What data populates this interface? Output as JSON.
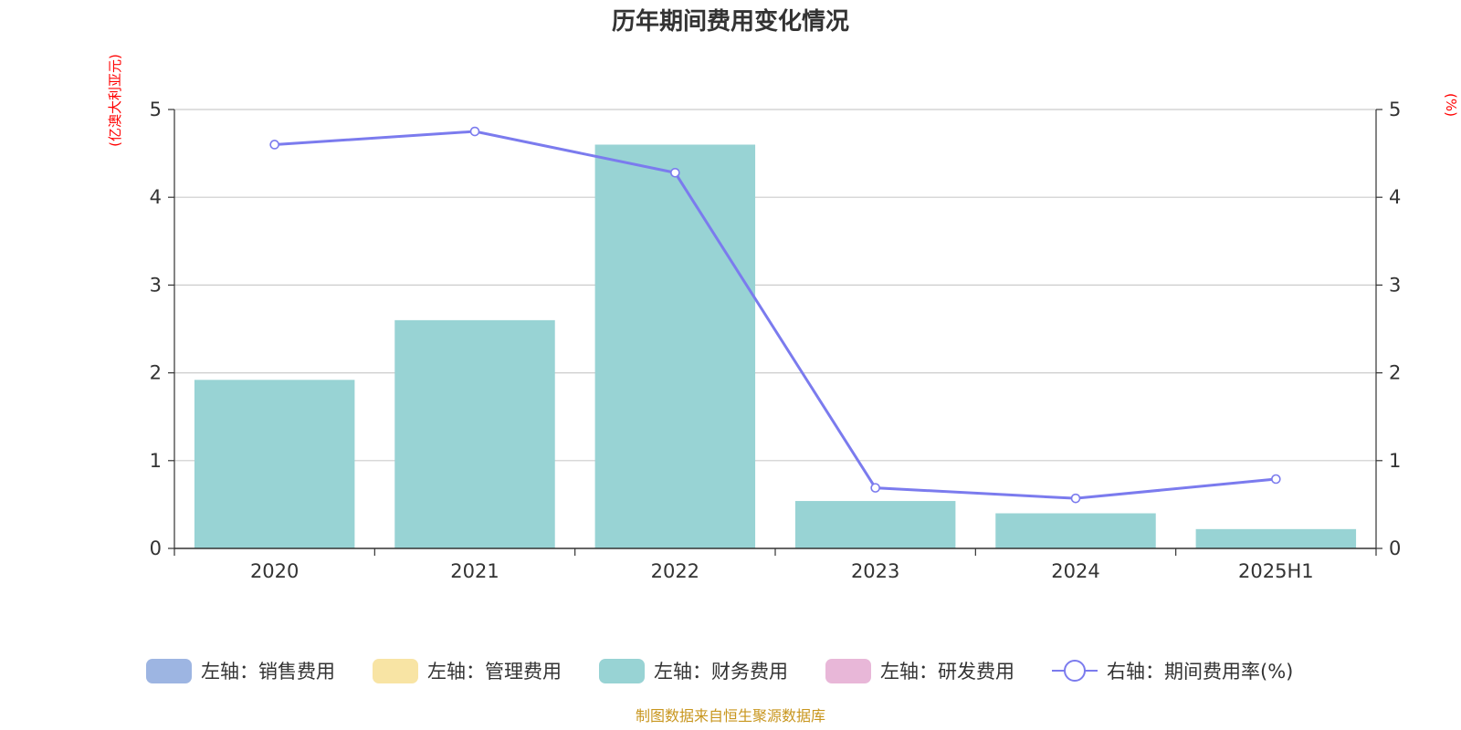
{
  "chart_data": {
    "type": "bar",
    "title": "历年期间费用变化情况",
    "categories": [
      "2020",
      "2021",
      "2022",
      "2023",
      "2024",
      "2025H1"
    ],
    "left_axis": {
      "unit_label": "(亿澳大利亚元)",
      "ylim": [
        0,
        5
      ],
      "ticks": [
        "0",
        "1",
        "2",
        "3",
        "4",
        "5"
      ]
    },
    "right_axis": {
      "unit_label": "(%)",
      "ylim": [
        0,
        5
      ],
      "ticks": [
        "0",
        "1",
        "2",
        "3",
        "4",
        "5"
      ]
    },
    "series": [
      {
        "name": "左轴：销售费用",
        "type": "bar",
        "axis": "left",
        "color": "#9DB5E2",
        "values": [
          null,
          null,
          null,
          null,
          null,
          null
        ]
      },
      {
        "name": "左轴：管理费用",
        "type": "bar",
        "axis": "left",
        "color": "#F8E4A4",
        "values": [
          null,
          null,
          null,
          null,
          null,
          null
        ]
      },
      {
        "name": "左轴：财务费用",
        "type": "bar",
        "axis": "left",
        "color": "#98D3D4",
        "values": [
          1.92,
          2.6,
          4.6,
          0.54,
          0.4,
          0.22
        ]
      },
      {
        "name": "左轴：研发费用",
        "type": "bar",
        "axis": "left",
        "color": "#E8B7D8",
        "values": [
          null,
          null,
          null,
          null,
          null,
          null
        ]
      },
      {
        "name": "右轴：期间费用率(%)",
        "type": "line",
        "axis": "right",
        "color": "#7B7BEE",
        "values": [
          4.6,
          4.75,
          4.28,
          0.69,
          0.57,
          0.79
        ]
      }
    ],
    "grid": true,
    "legend_position": "bottom",
    "source": "制图数据来自恒生聚源数据库",
    "colors": {
      "axis_unit": "#FF0000",
      "source": "#C8961E",
      "grid": "#CCCCCC",
      "axis": "#333333"
    }
  }
}
